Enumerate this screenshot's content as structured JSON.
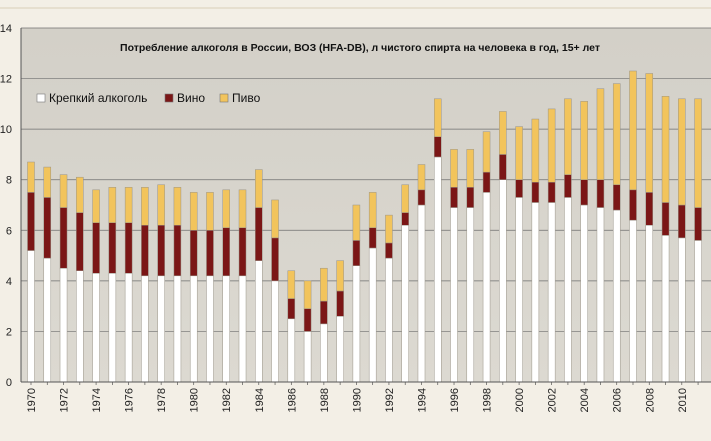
{
  "chart_data": {
    "type": "bar",
    "stacked": true,
    "title": "Потребление алкоголя в России, ВОЗ (HFA-DB), л чистого спирта на человека в год, 15+ лет",
    "ylim": [
      0,
      14
    ],
    "yticks": [
      0,
      2,
      4,
      6,
      8,
      10,
      12,
      14
    ],
    "ytick_labels": [
      "0",
      "2",
      "4",
      "6",
      "8",
      "10",
      "12",
      "14"
    ],
    "grid": "horizontal",
    "legend_position": "top-left",
    "categories": [
      1970,
      1971,
      1972,
      1973,
      1974,
      1975,
      1976,
      1977,
      1978,
      1979,
      1980,
      1981,
      1982,
      1983,
      1984,
      1985,
      1986,
      1987,
      1988,
      1989,
      1990,
      1991,
      1992,
      1993,
      1994,
      1995,
      1996,
      1997,
      1998,
      1999,
      2000,
      2001,
      2002,
      2003,
      2004,
      2005,
      2006,
      2007,
      2008,
      2009,
      2010,
      2011
    ],
    "xtick_labels": [
      "1970",
      "1972",
      "1974",
      "1976",
      "1978",
      "1980",
      "1982",
      "1984",
      "1986",
      "1988",
      "1990",
      "1992",
      "1994",
      "1996",
      "1998",
      "2000",
      "2002",
      "2004",
      "2006",
      "2008",
      "2010"
    ],
    "series": [
      {
        "name": "Крепкий алкоголь",
        "color": "#ffffff",
        "values": [
          5.2,
          4.9,
          4.5,
          4.4,
          4.3,
          4.3,
          4.3,
          4.2,
          4.2,
          4.2,
          4.2,
          4.2,
          4.2,
          4.2,
          4.8,
          4.0,
          2.5,
          2.0,
          2.3,
          2.6,
          4.6,
          5.3,
          4.9,
          6.2,
          7.0,
          8.9,
          6.9,
          6.9,
          7.5,
          8.0,
          7.3,
          7.1,
          7.1,
          7.3,
          7.0,
          6.9,
          6.8,
          6.4,
          6.2,
          5.8,
          5.7,
          5.6
        ]
      },
      {
        "name": "Вино",
        "color": "#7b1616",
        "values": [
          2.3,
          2.4,
          2.4,
          2.3,
          2.0,
          2.0,
          2.0,
          2.0,
          2.0,
          2.0,
          1.8,
          1.8,
          1.9,
          1.9,
          2.1,
          1.7,
          0.8,
          0.9,
          0.9,
          1.0,
          1.0,
          0.8,
          0.6,
          0.5,
          0.6,
          0.8,
          0.8,
          0.8,
          0.8,
          1.0,
          0.7,
          0.8,
          0.8,
          0.9,
          1.0,
          1.1,
          1.0,
          1.2,
          1.3,
          1.3,
          1.3,
          1.3
        ]
      },
      {
        "name": "Пиво",
        "color": "#f2c45c",
        "values": [
          1.2,
          1.2,
          1.3,
          1.4,
          1.3,
          1.4,
          1.4,
          1.5,
          1.6,
          1.5,
          1.5,
          1.5,
          1.5,
          1.5,
          1.5,
          1.5,
          1.1,
          1.1,
          1.3,
          1.2,
          1.4,
          1.4,
          1.1,
          1.1,
          1.0,
          1.5,
          1.5,
          1.5,
          1.6,
          1.7,
          2.1,
          2.5,
          2.9,
          3.0,
          3.1,
          3.6,
          4.0,
          4.7,
          4.7,
          4.2,
          4.2,
          4.3
        ]
      }
    ]
  }
}
